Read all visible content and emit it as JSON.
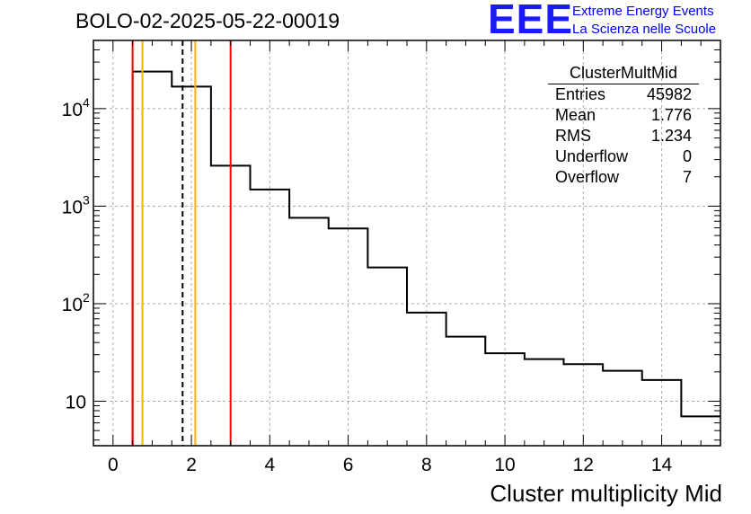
{
  "header": {
    "title": "BOLO-02-2025-05-22-00019"
  },
  "logo": {
    "mark": "EEE",
    "line1": "Extreme Energy Events",
    "line2": "La Scienza nelle Scuole",
    "color": "#0000ff"
  },
  "stats": {
    "title": "ClusterMultMid",
    "rows": [
      {
        "label": "Entries",
        "value": "45982"
      },
      {
        "label": "Mean",
        "value": "1.776"
      },
      {
        "label": "RMS",
        "value": "1.234"
      },
      {
        "label": "Underflow",
        "value": "0"
      },
      {
        "label": "Overflow",
        "value": "7"
      }
    ]
  },
  "chart_data": {
    "type": "histogram",
    "xlabel": "Cluster multiplicity Mid",
    "ylabel": "",
    "xlim": [
      -0.5,
      15.5
    ],
    "ylim": [
      3.5,
      50000
    ],
    "log_y": true,
    "grid": true,
    "x_ticks": [
      0,
      2,
      4,
      6,
      8,
      10,
      12,
      14
    ],
    "y_ticks": [
      {
        "value": 10,
        "label": "10"
      },
      {
        "value": 100,
        "label": "10",
        "sup": "2"
      },
      {
        "value": 1000,
        "label": "10",
        "sup": "3"
      },
      {
        "value": 10000,
        "label": "10",
        "sup": "4"
      }
    ],
    "bins": [
      {
        "low": 0.5,
        "high": 1.5,
        "value": 24000
      },
      {
        "low": 1.5,
        "high": 2.5,
        "value": 16800
      },
      {
        "low": 2.5,
        "high": 3.5,
        "value": 2600
      },
      {
        "low": 3.5,
        "high": 4.5,
        "value": 1480
      },
      {
        "low": 4.5,
        "high": 5.5,
        "value": 760
      },
      {
        "low": 5.5,
        "high": 6.5,
        "value": 590
      },
      {
        "low": 6.5,
        "high": 7.5,
        "value": 235
      },
      {
        "low": 7.5,
        "high": 8.5,
        "value": 81
      },
      {
        "low": 8.5,
        "high": 9.5,
        "value": 46
      },
      {
        "low": 9.5,
        "high": 10.5,
        "value": 31
      },
      {
        "low": 10.5,
        "high": 11.5,
        "value": 27
      },
      {
        "low": 11.5,
        "high": 12.5,
        "value": 24
      },
      {
        "low": 12.5,
        "high": 13.5,
        "value": 20.5
      },
      {
        "low": 13.5,
        "high": 14.5,
        "value": 16.5
      },
      {
        "low": 14.5,
        "high": 15.5,
        "value": 7
      }
    ],
    "vlines": [
      {
        "x": 0.5,
        "color": "#ff0000",
        "style": "solid"
      },
      {
        "x": 0.75,
        "color": "#ffb300",
        "style": "solid"
      },
      {
        "x": 1.776,
        "color": "#000000",
        "style": "dashed"
      },
      {
        "x": 2.1,
        "color": "#ffb300",
        "style": "solid"
      },
      {
        "x": 3.0,
        "color": "#ff0000",
        "style": "solid"
      }
    ],
    "colors": {
      "histogram": "#000000",
      "grid": "#aaaaaa"
    }
  }
}
